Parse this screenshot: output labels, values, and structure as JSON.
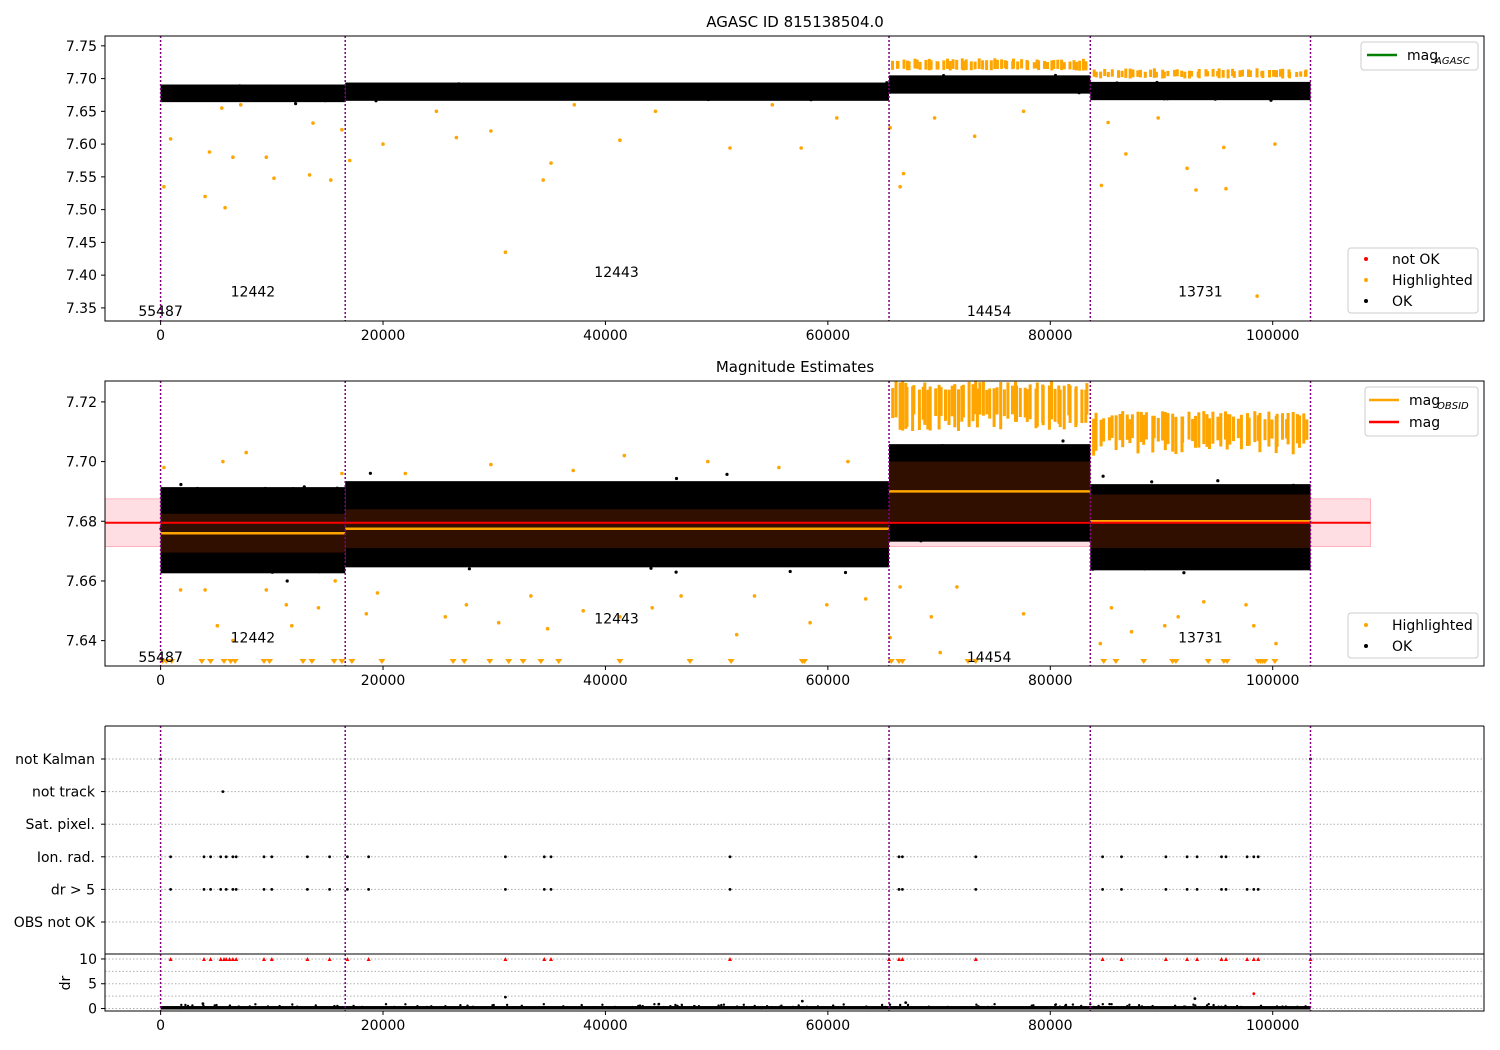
{
  "figure": {
    "panel1_title": "AGASC ID 815138504.0",
    "panel2_title": "Magnitude Estimates"
  },
  "colors": {
    "ok": "#000000",
    "highlighted": "#ffa500",
    "not_ok": "#ff0000",
    "mag_agasc": "#008000",
    "mag_obsid": "#ffa500",
    "mag": "#ff0000",
    "obs_boundary": "#800080",
    "mag_band": "#ffb6c1"
  },
  "legends": {
    "panel1_lines": [
      {
        "label": "mag",
        "sub": "AGASC"
      }
    ],
    "panel1_points": [
      "not OK",
      "Highlighted",
      "OK"
    ],
    "panel2_lines": [
      {
        "label": "mag",
        "sub": "OBSID"
      },
      {
        "label": "mag",
        "sub": ""
      }
    ],
    "panel2_points": [
      "Highlighted",
      "OK"
    ]
  },
  "chart_data": [
    {
      "type": "scatter",
      "title": "AGASC ID 815138504.0",
      "xlim": [
        -5000,
        119000
      ],
      "ylim": [
        7.33,
        7.765
      ],
      "xticks": [
        0,
        20000,
        40000,
        60000,
        80000,
        100000
      ],
      "yticks": [
        7.35,
        7.4,
        7.45,
        7.5,
        7.55,
        7.6,
        7.65,
        7.7,
        7.75
      ],
      "obs_boundaries": [
        0,
        16600,
        65500,
        83600,
        103400
      ],
      "obsid_labels": [
        {
          "text": "55487",
          "x": 0,
          "y": 7.345
        },
        {
          "text": "12442",
          "x": 8300,
          "y": 7.375
        },
        {
          "text": "12443",
          "x": 41000,
          "y": 7.405
        },
        {
          "text": "14454",
          "x": 74500,
          "y": 7.345
        },
        {
          "text": "13731",
          "x": 93500,
          "y": 7.375
        }
      ],
      "ok_bands": [
        {
          "x": [
            0,
            16600
          ],
          "y": [
            7.661,
            7.694
          ]
        },
        {
          "x": [
            16600,
            65500
          ],
          "y": [
            7.663,
            7.697
          ]
        },
        {
          "x": [
            65500,
            83600
          ],
          "y": [
            7.674,
            7.708
          ]
        },
        {
          "x": [
            83600,
            103400
          ],
          "y": [
            7.664,
            7.698
          ]
        }
      ],
      "highlighted_points": [
        [
          300,
          7.535
        ],
        [
          900,
          7.608
        ],
        [
          4000,
          7.52
        ],
        [
          4400,
          7.588
        ],
        [
          5500,
          7.655
        ],
        [
          5800,
          7.503
        ],
        [
          6500,
          7.58
        ],
        [
          7200,
          7.66
        ],
        [
          9500,
          7.58
        ],
        [
          10200,
          7.548
        ],
        [
          13400,
          7.553
        ],
        [
          13700,
          7.632
        ],
        [
          15300,
          7.545
        ],
        [
          16300,
          7.622
        ],
        [
          17000,
          7.575
        ],
        [
          20000,
          7.6
        ],
        [
          24800,
          7.65
        ],
        [
          26600,
          7.61
        ],
        [
          29700,
          7.62
        ],
        [
          31000,
          7.435
        ],
        [
          34400,
          7.545
        ],
        [
          35100,
          7.571
        ],
        [
          37200,
          7.66
        ],
        [
          41300,
          7.606
        ],
        [
          44500,
          7.65
        ],
        [
          51200,
          7.594
        ],
        [
          55000,
          7.66
        ],
        [
          57600,
          7.594
        ],
        [
          60800,
          7.64
        ],
        [
          65600,
          7.625
        ],
        [
          66500,
          7.535
        ],
        [
          66800,
          7.555
        ],
        [
          69600,
          7.64
        ],
        [
          73200,
          7.612
        ],
        [
          77600,
          7.65
        ],
        [
          84600,
          7.537
        ],
        [
          85200,
          7.633
        ],
        [
          86800,
          7.585
        ],
        [
          89700,
          7.64
        ],
        [
          92300,
          7.563
        ],
        [
          93100,
          7.53
        ],
        [
          95600,
          7.595
        ],
        [
          95800,
          7.532
        ],
        [
          98600,
          7.368
        ],
        [
          100200,
          7.6
        ]
      ],
      "highlighted_bands": [
        {
          "x": [
            65600,
            83500
          ],
          "y": [
            7.712,
            7.731
          ]
        },
        {
          "x": [
            83700,
            103300
          ],
          "y": [
            7.7,
            7.716
          ]
        }
      ],
      "lines": [
        {
          "name": "mag_AGASC",
          "y": null
        }
      ]
    },
    {
      "type": "scatter",
      "title": "Magnitude Estimates",
      "xlim": [
        -5000,
        119000
      ],
      "ylim": [
        7.6315,
        7.727
      ],
      "xticks": [
        0,
        20000,
        40000,
        60000,
        80000,
        100000
      ],
      "yticks": [
        7.64,
        7.66,
        7.68,
        7.7,
        7.72
      ],
      "mag": 7.6795,
      "mag_band": [
        7.6715,
        7.6875
      ],
      "mag_band_x": [
        -5000,
        108800
      ],
      "obsid_mags": [
        {
          "x": [
            0,
            16600
          ],
          "mag": 7.676,
          "band": [
            7.6695,
            7.6825
          ]
        },
        {
          "x": [
            16600,
            65500
          ],
          "mag": 7.6775,
          "band": [
            7.671,
            7.684
          ]
        },
        {
          "x": [
            65500,
            83600
          ],
          "mag": 7.69,
          "band": [
            7.68,
            7.7
          ]
        },
        {
          "x": [
            83600,
            103400
          ],
          "mag": 7.68,
          "band": [
            7.671,
            7.689
          ]
        }
      ],
      "obsid_labels": [
        {
          "text": "55487",
          "x": 0,
          "y": 7.6345
        },
        {
          "text": "12442",
          "x": 8300,
          "y": 7.641
        },
        {
          "text": "12443",
          "x": 41000,
          "y": 7.6475
        },
        {
          "text": "14454",
          "x": 74500,
          "y": 7.6345
        },
        {
          "text": "13731",
          "x": 93500,
          "y": 7.641
        }
      ],
      "ok_bands": [
        {
          "x": [
            0,
            16600
          ],
          "y": [
            7.658,
            7.696
          ]
        },
        {
          "x": [
            16600,
            65500
          ],
          "y": [
            7.66,
            7.698
          ]
        },
        {
          "x": [
            65500,
            83600
          ],
          "y": [
            7.668,
            7.711
          ]
        },
        {
          "x": [
            83600,
            103400
          ],
          "y": [
            7.659,
            7.697
          ]
        }
      ],
      "highlighted_points": [
        [
          300,
          7.698
        ],
        [
          1800,
          7.657
        ],
        [
          4000,
          7.657
        ],
        [
          5100,
          7.645
        ],
        [
          5600,
          7.7
        ],
        [
          6500,
          7.64
        ],
        [
          7700,
          7.703
        ],
        [
          9500,
          7.657
        ],
        [
          11300,
          7.652
        ],
        [
          11800,
          7.645
        ],
        [
          14200,
          7.651
        ],
        [
          15700,
          7.66
        ],
        [
          16300,
          7.696
        ],
        [
          18500,
          7.649
        ],
        [
          19500,
          7.656
        ],
        [
          22000,
          7.696
        ],
        [
          25600,
          7.648
        ],
        [
          27500,
          7.652
        ],
        [
          29700,
          7.699
        ],
        [
          30400,
          7.646
        ],
        [
          33300,
          7.655
        ],
        [
          34800,
          7.644
        ],
        [
          37100,
          7.697
        ],
        [
          38000,
          7.65
        ],
        [
          41300,
          7.648
        ],
        [
          41700,
          7.702
        ],
        [
          44200,
          7.651
        ],
        [
          46800,
          7.655
        ],
        [
          49200,
          7.7
        ],
        [
          51800,
          7.642
        ],
        [
          53400,
          7.655
        ],
        [
          55600,
          7.698
        ],
        [
          58400,
          7.646
        ],
        [
          59900,
          7.652
        ],
        [
          61800,
          7.7
        ],
        [
          63400,
          7.654
        ],
        [
          65600,
          7.641
        ],
        [
          66500,
          7.658
        ],
        [
          69300,
          7.648
        ],
        [
          70100,
          7.636
        ],
        [
          71600,
          7.658
        ],
        [
          77600,
          7.649
        ],
        [
          84500,
          7.639
        ],
        [
          85500,
          7.651
        ],
        [
          87300,
          7.643
        ],
        [
          90300,
          7.645
        ],
        [
          91500,
          7.648
        ],
        [
          93800,
          7.653
        ],
        [
          97600,
          7.652
        ],
        [
          98300,
          7.645
        ],
        [
          100300,
          7.639
        ]
      ],
      "highlighted_bands": [
        {
          "x": [
            65600,
            83500
          ],
          "y": [
            7.71,
            7.727
          ]
        },
        {
          "x": [
            83700,
            103300
          ],
          "y": [
            7.702,
            7.717
          ]
        }
      ],
      "out_of_range_markers_x": [
        200,
        500,
        1000,
        3700,
        4500,
        5700,
        6300,
        6700,
        9300,
        9800,
        12800,
        13600,
        15600,
        16300,
        17200,
        19900,
        26300,
        27300,
        29600,
        31300,
        32600,
        34200,
        35800,
        41300,
        47600,
        51300,
        57700,
        57900,
        65700,
        66400,
        66700,
        72600,
        73300,
        84800,
        85900,
        88400,
        91000,
        91300,
        94200,
        95600,
        95900,
        98700,
        98900,
        99100,
        99300,
        100200
      ]
    },
    {
      "type": "scatter",
      "xlim": [
        -5000,
        119000
      ],
      "xticks": [
        0,
        20000,
        40000,
        60000,
        80000,
        100000
      ],
      "flag_rows": [
        "not Kalman",
        "not track",
        "Sat. pixel.",
        "Ion. rad.",
        "dr > 5",
        "OBS not OK"
      ],
      "dr_ylabel": "dr",
      "dr_ylim": [
        -0.5,
        11
      ],
      "dr_yticks": [
        0,
        5,
        10
      ],
      "flag_points": {
        "not Kalman": [
          0,
          65500,
          103400
        ],
        "not track": [
          5600
        ],
        "Sat. pixel.": [],
        "Ion. rad.": [
          900,
          3900,
          4500,
          5400,
          5900,
          6500,
          6800,
          9300,
          10000,
          13200,
          15200,
          16800,
          18700,
          31000,
          34500,
          35100,
          51200,
          66400,
          66700,
          73300,
          84700,
          86400,
          90400,
          92300,
          93200,
          95400,
          95800,
          97700,
          98300,
          98700
        ],
        "dr > 5": [
          900,
          3900,
          4500,
          5400,
          5900,
          6500,
          6800,
          9300,
          10000,
          13200,
          15200,
          16800,
          18700,
          31000,
          34500,
          35100,
          51200,
          66400,
          66700,
          73300,
          84700,
          86400,
          90400,
          92300,
          93200,
          95400,
          95800,
          97700,
          98300,
          98700
        ],
        "OBS not OK": []
      },
      "dr_capped_x": [
        900,
        3900,
        4500,
        5400,
        5700,
        5900,
        6200,
        6500,
        6800,
        9300,
        10000,
        13200,
        15200,
        16800,
        18700,
        31000,
        34500,
        35100,
        51200,
        65500,
        66400,
        66700,
        73300,
        84700,
        86400,
        90400,
        92300,
        93200,
        95400,
        95800,
        97700,
        98300,
        98700,
        103400
      ],
      "dr_scatter_points": [
        [
          31000,
          2.3
        ],
        [
          93000,
          2.0
        ],
        [
          98300,
          3.0
        ],
        [
          57700,
          1.5
        ],
        [
          67000,
          1.2
        ],
        [
          3800,
          1.0
        ],
        [
          44800,
          0.9
        ]
      ]
    }
  ]
}
